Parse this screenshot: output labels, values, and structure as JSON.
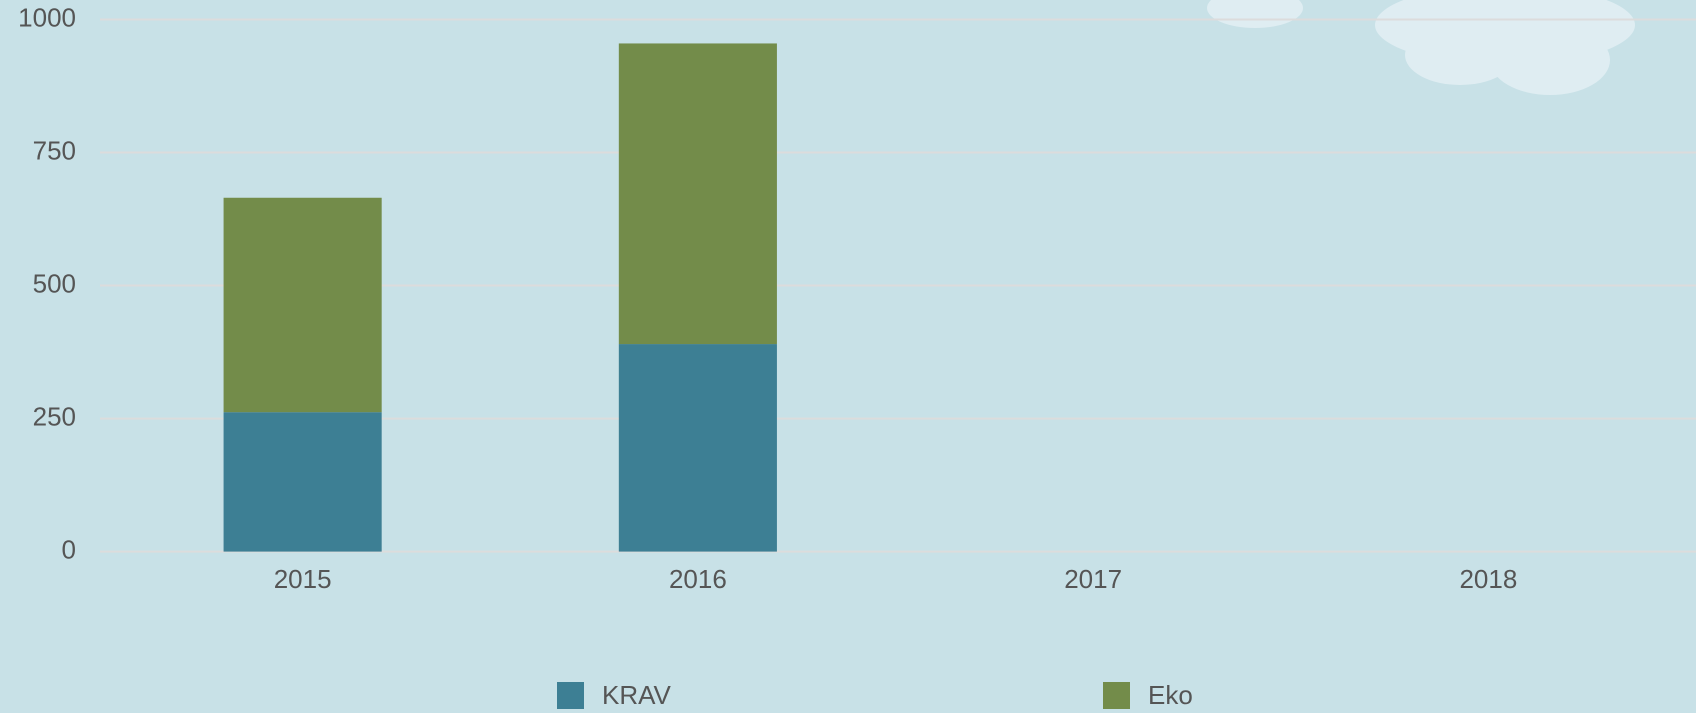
{
  "chart_data": {
    "type": "stacked_bar",
    "categories": [
      "2015",
      "2016",
      "2017",
      "2018"
    ],
    "series": [
      {
        "name": "KRAV",
        "color": "#3d7f94",
        "values": [
          262,
          390,
          null,
          null
        ]
      },
      {
        "name": "Eko",
        "color": "#738c4a",
        "values": [
          403,
          565,
          null,
          null
        ]
      }
    ],
    "ylim": [
      0,
      1000
    ],
    "yticks": [
      0,
      250,
      500,
      750,
      1000
    ],
    "grid": true,
    "legend": "bottom"
  }
}
